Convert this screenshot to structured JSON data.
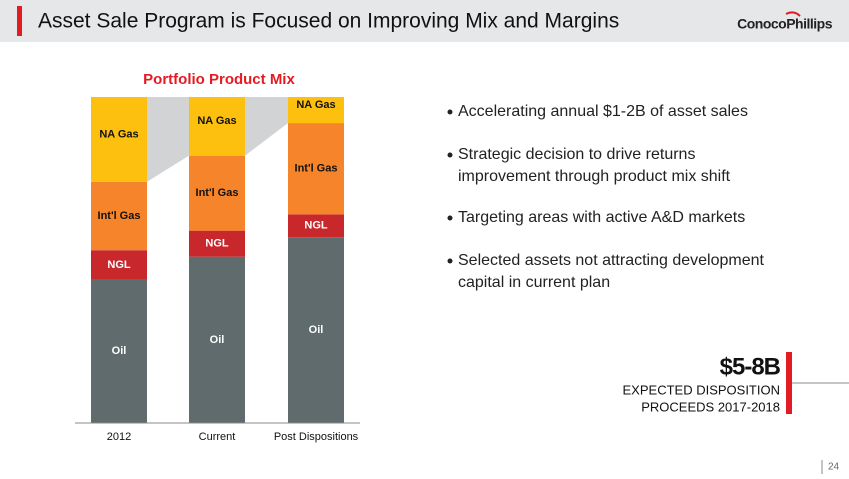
{
  "header": {
    "title": "Asset Sale Program is Focused on Improving Mix and Margins",
    "logo": "ConocoPhillips"
  },
  "chart_data": {
    "type": "stacked_bar",
    "title": "Portfolio Product Mix",
    "categories": [
      "2012",
      "Current",
      "Post Dispositions"
    ],
    "series": [
      {
        "name": "Oil",
        "color": "#5f6b6d",
        "values": [
          44,
          51,
          57
        ]
      },
      {
        "name": "NGL",
        "color": "#c8272c",
        "values": [
          9,
          8,
          7
        ]
      },
      {
        "name": "Int'l Gas",
        "color": "#f5842a",
        "values": [
          21,
          23,
          28
        ]
      },
      {
        "name": "NA Gas",
        "color": "#fdc00f",
        "values": [
          26,
          18,
          8
        ]
      }
    ]
  },
  "bullets": [
    [
      "Accelerating annual $1-2B of asset sales"
    ],
    [
      "Strategic decision to drive returns",
      "improvement through product mix shift"
    ],
    [
      "Targeting areas with active A&D markets"
    ],
    [
      "Selected assets not attracting development",
      "capital in current plan"
    ]
  ],
  "callout": {
    "value": "$5-8B",
    "lines": [
      "EXPECTED DISPOSITION",
      "PROCEEDS 2017-2018"
    ]
  },
  "page_number": "24"
}
